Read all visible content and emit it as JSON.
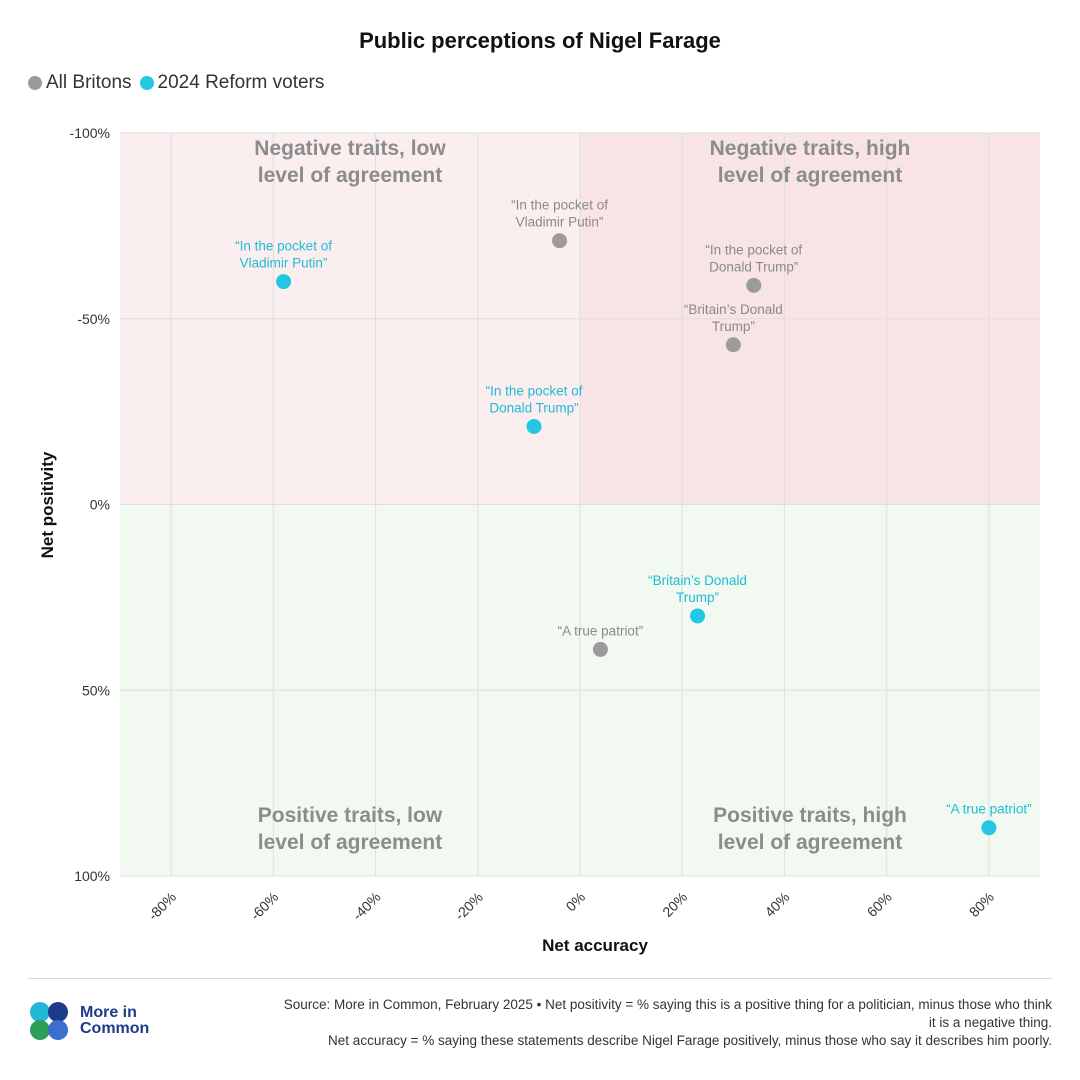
{
  "title": "Public perceptions of Nigel Farage",
  "legend": [
    {
      "label": "All Britons",
      "color": "#9b9b9b"
    },
    {
      "label": "2024 Reform voters",
      "color": "#22c7e4"
    }
  ],
  "chart_data": {
    "type": "scatter",
    "title": "Public perceptions of Nigel Farage",
    "xlabel": "Net accuracy",
    "ylabel": "Net positivity",
    "xlim": [
      -90,
      90
    ],
    "ylim": [
      -100,
      100
    ],
    "y_inverted": true,
    "x_ticks": [
      "-80%",
      "-60%",
      "-40%",
      "-20%",
      "0%",
      "20%",
      "40%",
      "60%",
      "80%"
    ],
    "x_tick_values": [
      -80,
      -60,
      -40,
      -20,
      0,
      20,
      40,
      60,
      80
    ],
    "y_ticks": [
      "-100%",
      "-50%",
      "0%",
      "50%",
      "100%"
    ],
    "y_tick_values": [
      -100,
      -50,
      0,
      50,
      100
    ],
    "grid": true,
    "quadrants": [
      {
        "label": [
          "Negative traits, low",
          "level of agreement"
        ],
        "color": "#fbeeee"
      },
      {
        "label": [
          "Negative traits, high",
          "level of agreement"
        ],
        "color": "#f8e4e4"
      },
      {
        "label": [
          "Positive traits, low",
          "level of agreement"
        ],
        "color": "#f1f9f0"
      },
      {
        "label": [
          "Positive traits, high",
          "level of agreement"
        ],
        "color": "#f1f9f0"
      }
    ],
    "series": [
      {
        "name": "All Britons",
        "color": "#9b9b9b",
        "label_color": "#8a8a8a",
        "points": [
          {
            "label": [
              "“In the pocket of",
              "Vladimir Putin”"
            ],
            "x": -4,
            "y": -71
          },
          {
            "label": [
              "“In the pocket of",
              "Donald Trump”"
            ],
            "x": 34,
            "y": -59
          },
          {
            "label": [
              "“Britain’s Donald",
              "Trump”"
            ],
            "x": 30,
            "y": -43
          },
          {
            "label": [
              "“A true patriot”"
            ],
            "x": 4,
            "y": 39
          }
        ]
      },
      {
        "name": "2024 Reform voters",
        "color": "#22c7e4",
        "label_color": "#1fbcd8",
        "points": [
          {
            "label": [
              "“In the pocket of",
              "Vladimir Putin”"
            ],
            "x": -58,
            "y": -60
          },
          {
            "label": [
              "“In the pocket of",
              "Donald Trump”"
            ],
            "x": -9,
            "y": -21
          },
          {
            "label": [
              "“Britain’s Donald",
              "Trump”"
            ],
            "x": 23,
            "y": 30
          },
          {
            "label": [
              "“A true patriot”"
            ],
            "x": 80,
            "y": 87
          }
        ]
      }
    ]
  },
  "footer": {
    "logo_line1": "More in",
    "logo_line2": "Common",
    "source_line1": "Source: More in Common, February 2025 • Net positivity = % saying this is a positive thing for a politician, minus those who think",
    "source_line2": "it is a negative thing.",
    "source_line3": "Net accuracy = % saying these statements describe Nigel Farage positively, minus those who say it describes him poorly."
  }
}
